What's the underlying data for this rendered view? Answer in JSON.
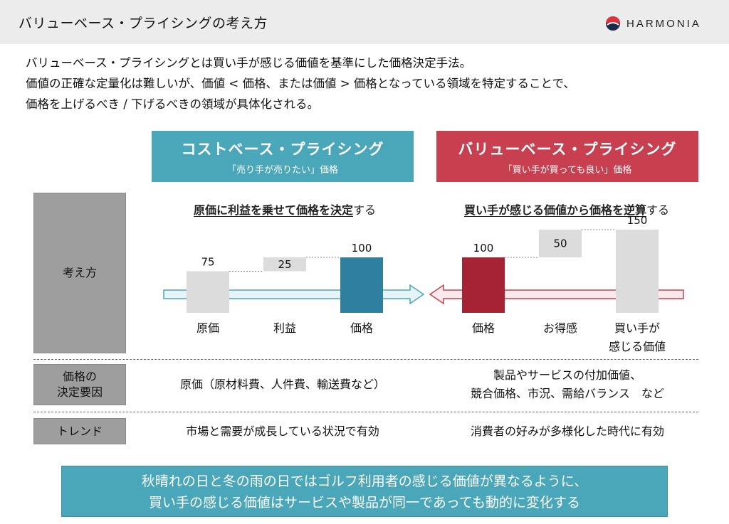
{
  "header": {
    "title": "バリューベース・プライシングの考え方",
    "logo_text": "HARMONIA"
  },
  "intro": {
    "lines": [
      "バリューベース・プライシングとは買い手が感じる価値を基準にした価格決定手法。",
      "価値の正確な定量化は難しいが、価値 < 価格、または価値 > 価格となっている領域を特定することで、",
      "価格を上げるべき / 下げるべきの領域が具体化される。"
    ]
  },
  "cost_based": {
    "title": "コストベース・プライシング",
    "subtitle": "「売り手が売りたい」価格",
    "method_bold": "原価に利益を乗せて価格を決定",
    "method_tail": "する",
    "factors": "原価（原材料費、人件費、輸送費など）",
    "trend": "市場と需要が成長している状況で有効",
    "color": "#4aa7b9"
  },
  "value_based": {
    "title": "バリューベース・プライシング",
    "subtitle": "「買い手が買っても良い」価格",
    "method_bold": "買い手が感じる価値から価格を逆算",
    "method_tail": "する",
    "factors_line1": "製品やサービスの付加価値、",
    "factors_line2": "競合価格、市況、需給バランス　など",
    "trend": "消費者の好みが多様化した時代に有効",
    "color": "#c8404f"
  },
  "row_labels": {
    "kangae": "考え方",
    "youin_line1": "価格の",
    "youin_line2": "決定要因",
    "trend": "トレンド"
  },
  "chart_data": [
    {
      "type": "bar",
      "categories": [
        "原価",
        "利益",
        "価格"
      ],
      "values": [
        75,
        25,
        100
      ],
      "base": [
        0,
        75,
        0
      ],
      "colors": [
        "#dcdcdc",
        "#dcdcdc",
        "#2f7fa0"
      ]
    },
    {
      "type": "bar",
      "categories": [
        "価格",
        "お得感",
        "買い手が感じる価値"
      ],
      "category_lines": [
        [
          "価格"
        ],
        [
          "お得感"
        ],
        [
          "買い手が",
          "感じる価値"
        ]
      ],
      "values": [
        100,
        50,
        150
      ],
      "base": [
        0,
        100,
        0
      ],
      "colors": [
        "#a52335",
        "#dcdcdc",
        "#dcdcdc"
      ]
    }
  ],
  "bottom": {
    "line1": "秋晴れの日と冬の雨の日ではゴルフ利用者の感じる価値が異なるように、",
    "line2": "買い手の感じる価値はサービスや製品が同一であっても動的に変化する"
  }
}
